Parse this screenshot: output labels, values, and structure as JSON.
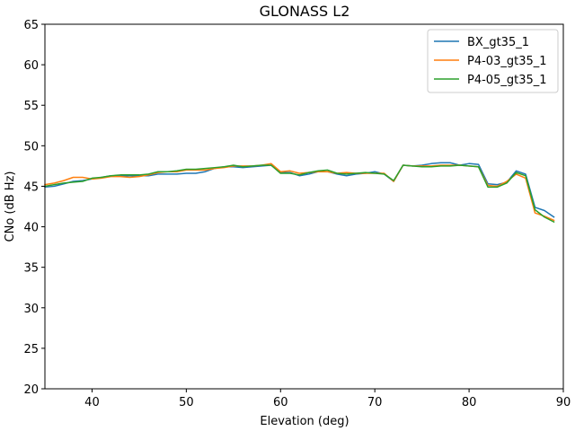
{
  "chart_data": {
    "type": "line",
    "title": "GLONASS L2",
    "xlabel": "Elevation (deg)",
    "ylabel": "CNo (dB Hz)",
    "xlim": [
      35,
      90
    ],
    "ylim": [
      20,
      65
    ],
    "xticks": [
      40,
      50,
      60,
      70,
      80,
      90
    ],
    "yticks": [
      20,
      25,
      30,
      35,
      40,
      45,
      50,
      55,
      60,
      65
    ],
    "grid": false,
    "legend_position": "top-right",
    "x": [
      35,
      36,
      37,
      38,
      39,
      40,
      41,
      42,
      43,
      44,
      45,
      46,
      47,
      48,
      49,
      50,
      51,
      52,
      53,
      54,
      55,
      56,
      57,
      58,
      59,
      60,
      61,
      62,
      63,
      64,
      65,
      66,
      67,
      68,
      69,
      70,
      71,
      72,
      73,
      74,
      75,
      76,
      77,
      78,
      79,
      80,
      81,
      82,
      83,
      84,
      85,
      86,
      87,
      88,
      89
    ],
    "series": [
      {
        "name": "BX_gt35_1",
        "color": "#1f77b4",
        "values": [
          44.9,
          45.0,
          45.3,
          45.6,
          45.7,
          45.9,
          46.1,
          46.3,
          46.3,
          46.3,
          46.3,
          46.3,
          46.5,
          46.5,
          46.5,
          46.6,
          46.6,
          46.8,
          47.2,
          47.4,
          47.4,
          47.3,
          47.4,
          47.5,
          47.6,
          46.7,
          46.7,
          46.3,
          46.5,
          46.8,
          46.8,
          46.5,
          46.3,
          46.5,
          46.6,
          46.8,
          46.5,
          45.6,
          47.6,
          47.5,
          47.6,
          47.8,
          47.9,
          47.9,
          47.6,
          47.8,
          47.7,
          45.3,
          45.2,
          45.5,
          46.9,
          46.5,
          42.4,
          42.0,
          41.2
        ]
      },
      {
        "name": "P4-03_gt35_1",
        "color": "#ff7f0e",
        "values": [
          45.2,
          45.4,
          45.7,
          46.1,
          46.1,
          45.9,
          46.0,
          46.2,
          46.2,
          46.1,
          46.2,
          46.4,
          46.7,
          46.8,
          46.8,
          47.0,
          47.0,
          47.0,
          47.2,
          47.3,
          47.5,
          47.5,
          47.5,
          47.6,
          47.8,
          46.8,
          46.9,
          46.6,
          46.7,
          46.8,
          46.8,
          46.6,
          46.7,
          46.6,
          46.6,
          46.6,
          46.6,
          45.6,
          47.6,
          47.5,
          47.5,
          47.5,
          47.6,
          47.6,
          47.6,
          47.5,
          47.4,
          45.1,
          45.0,
          45.6,
          46.5,
          46.0,
          41.7,
          41.3,
          40.8
        ]
      },
      {
        "name": "P4-05_gt35_1",
        "color": "#2ca02c",
        "values": [
          45.0,
          45.2,
          45.4,
          45.5,
          45.6,
          46.0,
          46.1,
          46.3,
          46.4,
          46.4,
          46.4,
          46.5,
          46.8,
          46.8,
          46.9,
          47.1,
          47.1,
          47.2,
          47.3,
          47.4,
          47.6,
          47.4,
          47.5,
          47.6,
          47.6,
          46.6,
          46.6,
          46.4,
          46.7,
          46.9,
          47.0,
          46.6,
          46.5,
          46.6,
          46.7,
          46.6,
          46.5,
          45.7,
          47.6,
          47.5,
          47.4,
          47.4,
          47.5,
          47.5,
          47.6,
          47.5,
          47.4,
          44.9,
          44.9,
          45.4,
          46.7,
          46.3,
          42.1,
          41.2,
          40.6
        ]
      }
    ]
  }
}
